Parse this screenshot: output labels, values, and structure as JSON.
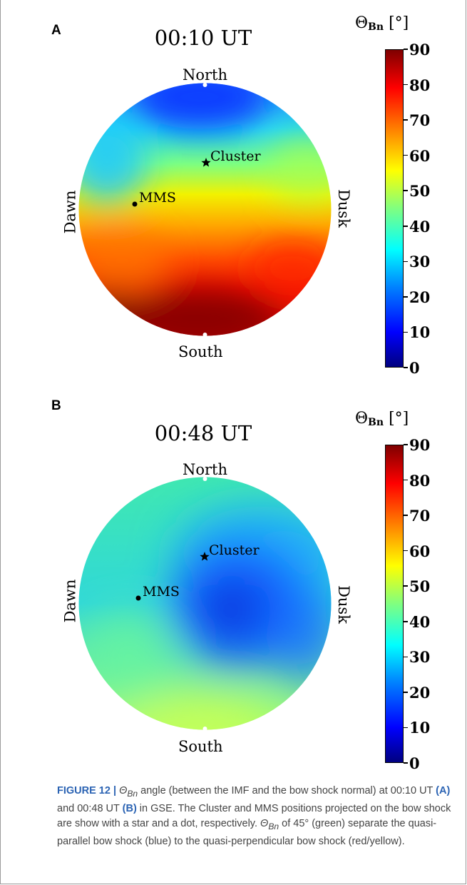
{
  "chart_data": [
    {
      "type": "heatmap",
      "panel_label": "A",
      "title": "00:10 UT",
      "directions": {
        "top": "North",
        "bottom": "South",
        "left": "Dawn",
        "right": "Dusk"
      },
      "colorbar": {
        "label": "Θ",
        "label_subscript": "Bn",
        "label_unit": "[°]",
        "range": [
          0,
          90
        ],
        "ticks": [
          0,
          10,
          20,
          30,
          40,
          50,
          60,
          70,
          80,
          90
        ],
        "colormap": "jet"
      },
      "field_description_values": {
        "top_center": 10,
        "upper_left": 35,
        "center": 60,
        "lower_band": 80,
        "bottom_center": 90
      },
      "markers": [
        {
          "name": "Cluster",
          "symbol": "star"
        },
        {
          "name": "MMS",
          "symbol": "dot"
        }
      ]
    },
    {
      "type": "heatmap",
      "panel_label": "B",
      "title": "00:48 UT",
      "directions": {
        "top": "North",
        "bottom": "South",
        "left": "Dawn",
        "right": "Dusk"
      },
      "colorbar": {
        "label": "Θ",
        "label_subscript": "Bn",
        "label_unit": "[°]",
        "range": [
          0,
          90
        ],
        "ticks": [
          0,
          10,
          20,
          30,
          40,
          50,
          60,
          70,
          80,
          90
        ],
        "colormap": "jet"
      },
      "field_description_values": {
        "center_min": 15,
        "left_edge": 40,
        "top": 38,
        "bottom": 50
      },
      "markers": [
        {
          "name": "Cluster",
          "symbol": "star"
        },
        {
          "name": "MMS",
          "symbol": "dot"
        }
      ]
    }
  ],
  "caption": {
    "figure_number": "FIGURE 12 |",
    "theta_symbol": "Θ",
    "theta_subscript": "Bn",
    "part1": " angle (between the IMF and the bow shock normal) at 00:10 UT ",
    "ref_a": "(A)",
    "part2": " and 00:48 UT ",
    "ref_b": "(B)",
    "part3": " in GSE. The Cluster and MMS positions projected on the bow shock are show with a star and a dot, respectively. ",
    "part4": " of 45° (green) separate the quasi-parallel bow shock (blue) to the quasi-perpendicular bow shock (red/yellow)."
  }
}
